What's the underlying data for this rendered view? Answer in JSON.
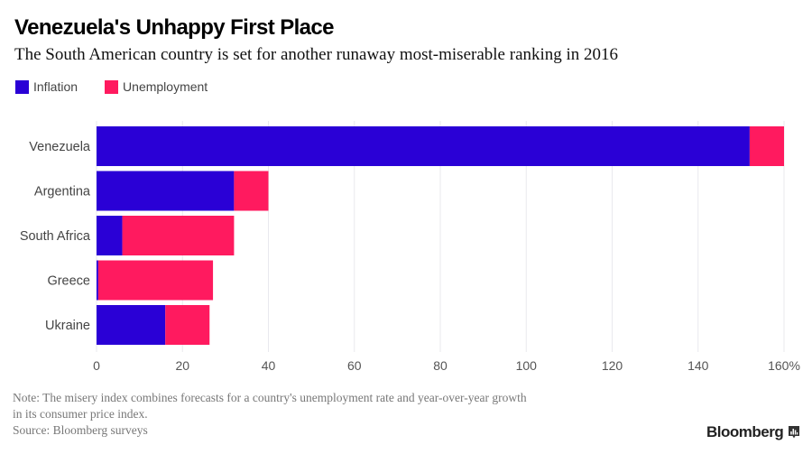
{
  "chart_data": {
    "type": "bar",
    "orientation": "horizontal",
    "stacked": true,
    "title": "Venezuela's Unhappy First Place",
    "subtitle": "The South American country is set for another runaway most-miserable ranking in 2016",
    "categories": [
      "Venezuela",
      "Argentina",
      "South Africa",
      "Greece",
      "Ukraine"
    ],
    "series": [
      {
        "name": "Inflation",
        "color": "#2a00d6",
        "values": [
          152,
          32,
          6,
          0.4,
          16
        ]
      },
      {
        "name": "Unemployment",
        "color": "#ff1a5f",
        "values": [
          8,
          8,
          26,
          26.7,
          10.3
        ]
      }
    ],
    "xlabel": "",
    "ylabel": "",
    "xlim": [
      0,
      160
    ],
    "xticks": [
      0,
      20,
      40,
      60,
      80,
      100,
      120,
      140,
      160
    ],
    "xtick_labels": [
      "0",
      "20",
      "40",
      "60",
      "80",
      "100",
      "120",
      "140",
      "160%"
    ],
    "grid": true,
    "legend_position": "top-left"
  },
  "legend": [
    {
      "label": "Inflation",
      "color": "#2a00d6"
    },
    {
      "label": "Unemployment",
      "color": "#ff1a5f"
    }
  ],
  "footer": {
    "note_line1": "Note: The misery index combines forecasts for a country's unemployment rate and year-over-year growth",
    "note_line2": "in its consumer price index.",
    "source": "Source: Bloomberg surveys",
    "brand": "Bloomberg"
  }
}
